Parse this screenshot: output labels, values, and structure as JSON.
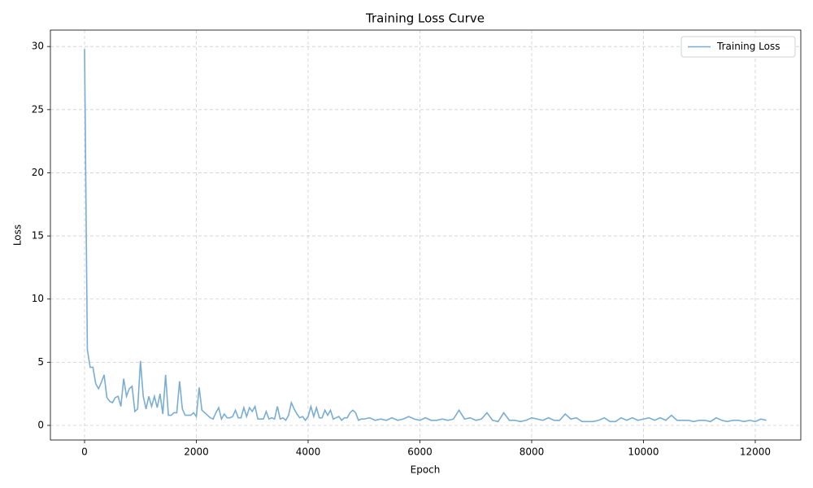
{
  "chart_data": {
    "type": "line",
    "title": "Training Loss Curve",
    "x_label": "Epoch",
    "y_label": "Loss",
    "x": [
      0,
      50,
      100,
      150,
      200,
      250,
      300,
      350,
      400,
      450,
      500,
      550,
      600,
      650,
      700,
      750,
      800,
      850,
      900,
      950,
      1000,
      1050,
      1100,
      1150,
      1200,
      1250,
      1300,
      1350,
      1400,
      1450,
      1500,
      1550,
      1600,
      1650,
      1700,
      1750,
      1800,
      1850,
      1900,
      1950,
      2000,
      2050,
      2100,
      2150,
      2200,
      2250,
      2300,
      2350,
      2400,
      2450,
      2500,
      2550,
      2600,
      2650,
      2700,
      2750,
      2800,
      2850,
      2900,
      2950,
      3000,
      3050,
      3100,
      3150,
      3200,
      3250,
      3300,
      3350,
      3400,
      3450,
      3500,
      3550,
      3600,
      3650,
      3700,
      3750,
      3800,
      3850,
      3900,
      3950,
      4000,
      4050,
      4100,
      4150,
      4200,
      4250,
      4300,
      4350,
      4400,
      4450,
      4500,
      4550,
      4600,
      4650,
      4700,
      4750,
      4800,
      4850,
      4900,
      4950,
      5000,
      5100,
      5200,
      5300,
      5400,
      5500,
      5600,
      5700,
      5800,
      5900,
      6000,
      6100,
      6200,
      6300,
      6400,
      6500,
      6600,
      6700,
      6800,
      6900,
      7000,
      7100,
      7200,
      7300,
      7400,
      7500,
      7600,
      7700,
      7800,
      7900,
      8000,
      8100,
      8200,
      8300,
      8400,
      8500,
      8600,
      8700,
      8800,
      8900,
      9000,
      9100,
      9200,
      9300,
      9400,
      9500,
      9600,
      9700,
      9800,
      9900,
      10000,
      10100,
      10200,
      10300,
      10400,
      10500,
      10600,
      10700,
      10800,
      10900,
      11000,
      11100,
      11200,
      11300,
      11400,
      11500,
      11600,
      11700,
      11800,
      11900,
      12000,
      12100,
      12200
    ],
    "series": [
      {
        "name": "Training Loss",
        "color": "#79add2",
        "values": [
          29.8,
          6.0,
          4.6,
          4.6,
          3.3,
          2.9,
          3.4,
          4.0,
          2.2,
          1.9,
          1.8,
          2.2,
          2.3,
          1.5,
          3.7,
          2.3,
          2.9,
          3.1,
          1.1,
          1.3,
          5.1,
          2.3,
          1.3,
          2.3,
          1.5,
          2.3,
          1.4,
          2.5,
          0.9,
          4.0,
          0.8,
          0.8,
          1.0,
          1.0,
          3.5,
          1.3,
          0.8,
          0.8,
          0.8,
          1.0,
          0.7,
          3.0,
          1.2,
          1.0,
          0.8,
          0.6,
          0.5,
          1.0,
          1.4,
          0.5,
          0.9,
          0.6,
          0.6,
          0.7,
          1.2,
          0.6,
          0.6,
          1.4,
          0.7,
          1.4,
          1.1,
          1.5,
          0.5,
          0.5,
          0.5,
          1.1,
          0.5,
          0.6,
          0.5,
          1.5,
          0.5,
          0.6,
          0.4,
          0.8,
          1.8,
          1.3,
          0.9,
          0.6,
          0.7,
          0.4,
          0.7,
          1.5,
          0.7,
          1.4,
          0.6,
          0.6,
          1.2,
          0.8,
          1.2,
          0.5,
          0.6,
          0.7,
          0.4,
          0.6,
          0.6,
          1.0,
          1.2,
          1.0,
          0.4,
          0.5,
          0.5,
          0.6,
          0.4,
          0.5,
          0.4,
          0.6,
          0.4,
          0.5,
          0.7,
          0.5,
          0.4,
          0.6,
          0.4,
          0.4,
          0.5,
          0.4,
          0.5,
          1.2,
          0.5,
          0.6,
          0.4,
          0.5,
          1.0,
          0.4,
          0.3,
          1.0,
          0.4,
          0.4,
          0.3,
          0.4,
          0.6,
          0.5,
          0.4,
          0.6,
          0.4,
          0.4,
          0.9,
          0.5,
          0.6,
          0.3,
          0.3,
          0.3,
          0.4,
          0.6,
          0.3,
          0.3,
          0.6,
          0.4,
          0.6,
          0.4,
          0.5,
          0.6,
          0.4,
          0.6,
          0.4,
          0.8,
          0.4,
          0.4,
          0.4,
          0.3,
          0.4,
          0.4,
          0.3,
          0.6,
          0.4,
          0.3,
          0.4,
          0.4,
          0.3,
          0.4,
          0.3,
          0.5,
          0.4
        ]
      }
    ],
    "xlim": [
      -611,
      12815
    ],
    "ylim": [
      -1.16,
      31.3
    ],
    "xticks": [
      0,
      2000,
      4000,
      6000,
      8000,
      10000,
      12000
    ],
    "yticks": [
      0,
      5,
      10,
      15,
      20,
      25,
      30
    ],
    "grid": true,
    "legend": "upper right"
  }
}
